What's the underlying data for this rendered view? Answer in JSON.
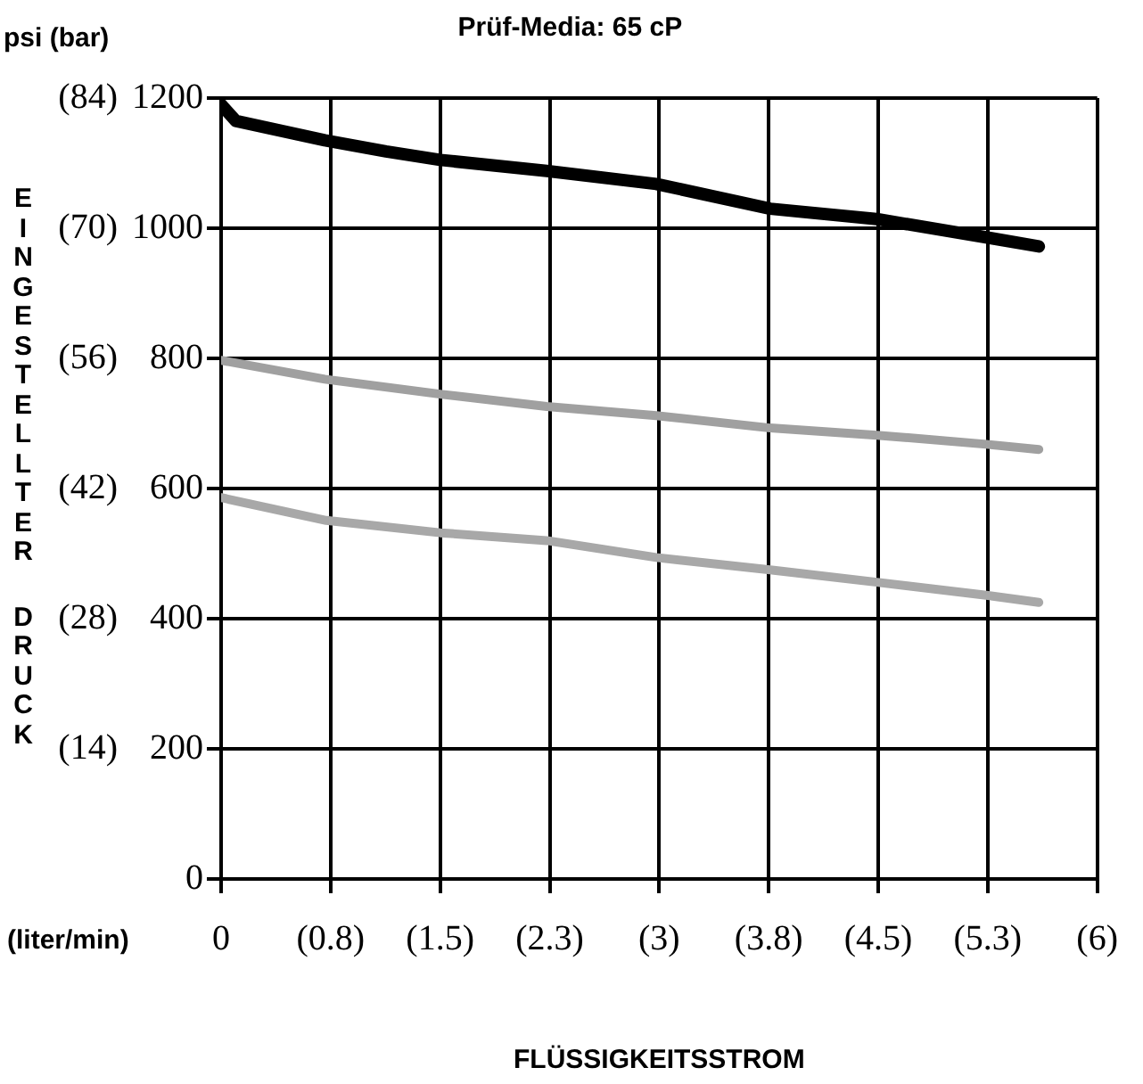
{
  "chart_data": {
    "type": "line",
    "title": "Prüf-Media: 65 cP",
    "xlabel": "FLÜSSIGKEITSSTROM",
    "ylabel": "EINGESTELLTER DRUCK",
    "annotations": [
      "psi (bar)",
      "(liter/min)"
    ],
    "xlim": [
      0,
      6
    ],
    "xticks": [
      0,
      {
        "value": 0.75,
        "label": "(0.8)"
      },
      {
        "value": 1.5,
        "label": "(1.5)"
      },
      {
        "value": 2.25,
        "label": "(2.3)"
      },
      {
        "value": 3,
        "label": "(3)"
      },
      {
        "value": 3.75,
        "label": "(3.8)"
      },
      {
        "value": 4.5,
        "label": "(4.5)"
      },
      {
        "value": 5.25,
        "label": "(5.3)"
      },
      {
        "value": 6,
        "label": "(6)"
      }
    ],
    "ylim": [
      0,
      1200
    ],
    "yticks": [
      0,
      200,
      400,
      600,
      800,
      1000,
      1200
    ],
    "y2lim": [
      0,
      84
    ],
    "y2ticks": [
      {
        "value": 14,
        "label": "(14)"
      },
      {
        "value": 28,
        "label": "(28)"
      },
      {
        "value": 42,
        "label": "(42)"
      },
      {
        "value": 56,
        "label": "(56)"
      },
      {
        "value": 70,
        "label": "(70)"
      },
      {
        "value": 84,
        "label": "(84)"
      }
    ],
    "grid": true,
    "legend": false,
    "marker": "none",
    "line_style": "solid",
    "series": [
      {
        "color": "#000000",
        "x": [
          0,
          0.1,
          0.71,
          1.13,
          1.5,
          2.23,
          2.98,
          3.76,
          4.49,
          5.24,
          5.6
        ],
        "values": [
          1190,
          1165,
          1135,
          1118,
          1105,
          1088,
          1068,
          1030,
          1014,
          986,
          972
        ]
      },
      {
        "color": "#a0a0a0",
        "x": [
          0,
          0.71,
          1.5,
          2.23,
          2.98,
          3.76,
          4.49,
          5.24,
          5.6
        ],
        "values": [
          797,
          768,
          745,
          726,
          712,
          693,
          682,
          668,
          660
        ]
      },
      {
        "color": "#a8a8a8",
        "x": [
          0,
          0.72,
          1.5,
          2.23,
          2.98,
          3.76,
          4.49,
          5.24,
          5.6
        ],
        "values": [
          586,
          551,
          532,
          520,
          494,
          475,
          456,
          436,
          425
        ]
      }
    ]
  }
}
